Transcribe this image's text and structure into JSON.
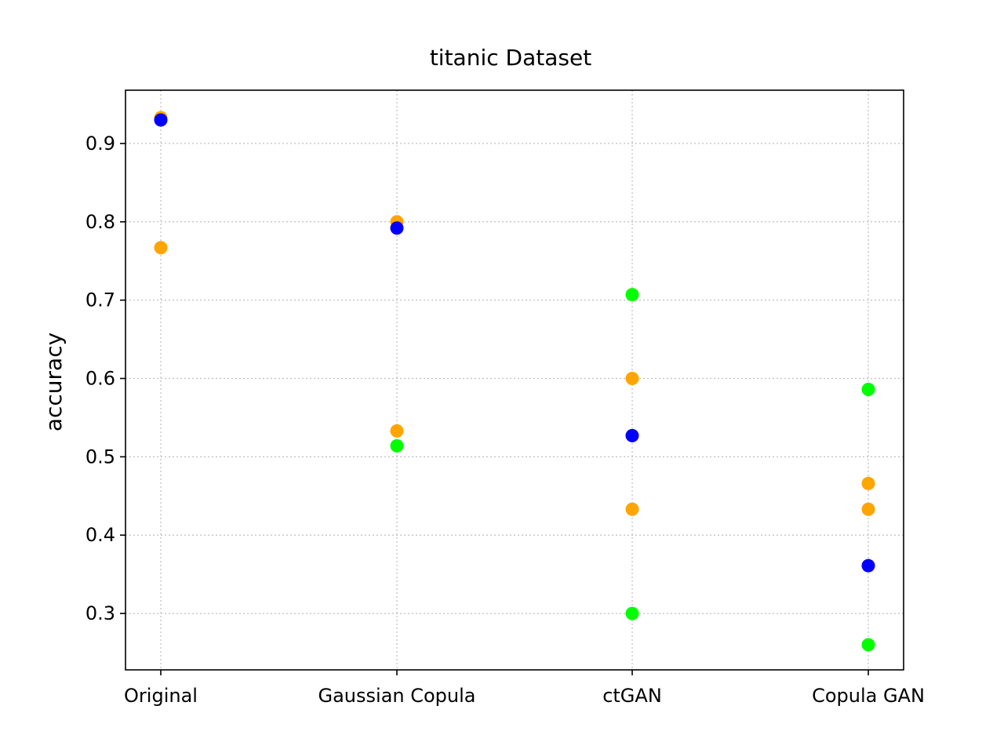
{
  "chart_data": {
    "type": "scatter",
    "title": "titanic Dataset",
    "xlabel": "",
    "ylabel": "accuracy",
    "categories": [
      "Original",
      "Gaussian Copula",
      "ctGAN",
      "Copula GAN"
    ],
    "yticks": [
      "0.3",
      "0.4",
      "0.5",
      "0.6",
      "0.7",
      "0.8",
      "0.9"
    ],
    "ylim": [
      0.228,
      0.968
    ],
    "grid": true,
    "legend": "none",
    "colors": {
      "orange": "#ffa500",
      "blue": "#0000ff",
      "green": "#00ff00"
    },
    "points": [
      {
        "category": "Original",
        "y": 0.933,
        "color": "orange"
      },
      {
        "category": "Original",
        "y": 0.93,
        "color": "blue"
      },
      {
        "category": "Original",
        "y": 0.767,
        "color": "orange"
      },
      {
        "category": "Gaussian Copula",
        "y": 0.8,
        "color": "orange"
      },
      {
        "category": "Gaussian Copula",
        "y": 0.792,
        "color": "blue"
      },
      {
        "category": "Gaussian Copula",
        "y": 0.533,
        "color": "orange"
      },
      {
        "category": "Gaussian Copula",
        "y": 0.514,
        "color": "green"
      },
      {
        "category": "ctGAN",
        "y": 0.707,
        "color": "green"
      },
      {
        "category": "ctGAN",
        "y": 0.6,
        "color": "orange"
      },
      {
        "category": "ctGAN",
        "y": 0.527,
        "color": "blue"
      },
      {
        "category": "ctGAN",
        "y": 0.433,
        "color": "orange"
      },
      {
        "category": "ctGAN",
        "y": 0.3,
        "color": "green"
      },
      {
        "category": "Copula GAN",
        "y": 0.586,
        "color": "green"
      },
      {
        "category": "Copula GAN",
        "y": 0.466,
        "color": "orange"
      },
      {
        "category": "Copula GAN",
        "y": 0.433,
        "color": "orange"
      },
      {
        "category": "Copula GAN",
        "y": 0.361,
        "color": "blue"
      },
      {
        "category": "Copula GAN",
        "y": 0.26,
        "color": "green"
      }
    ]
  }
}
